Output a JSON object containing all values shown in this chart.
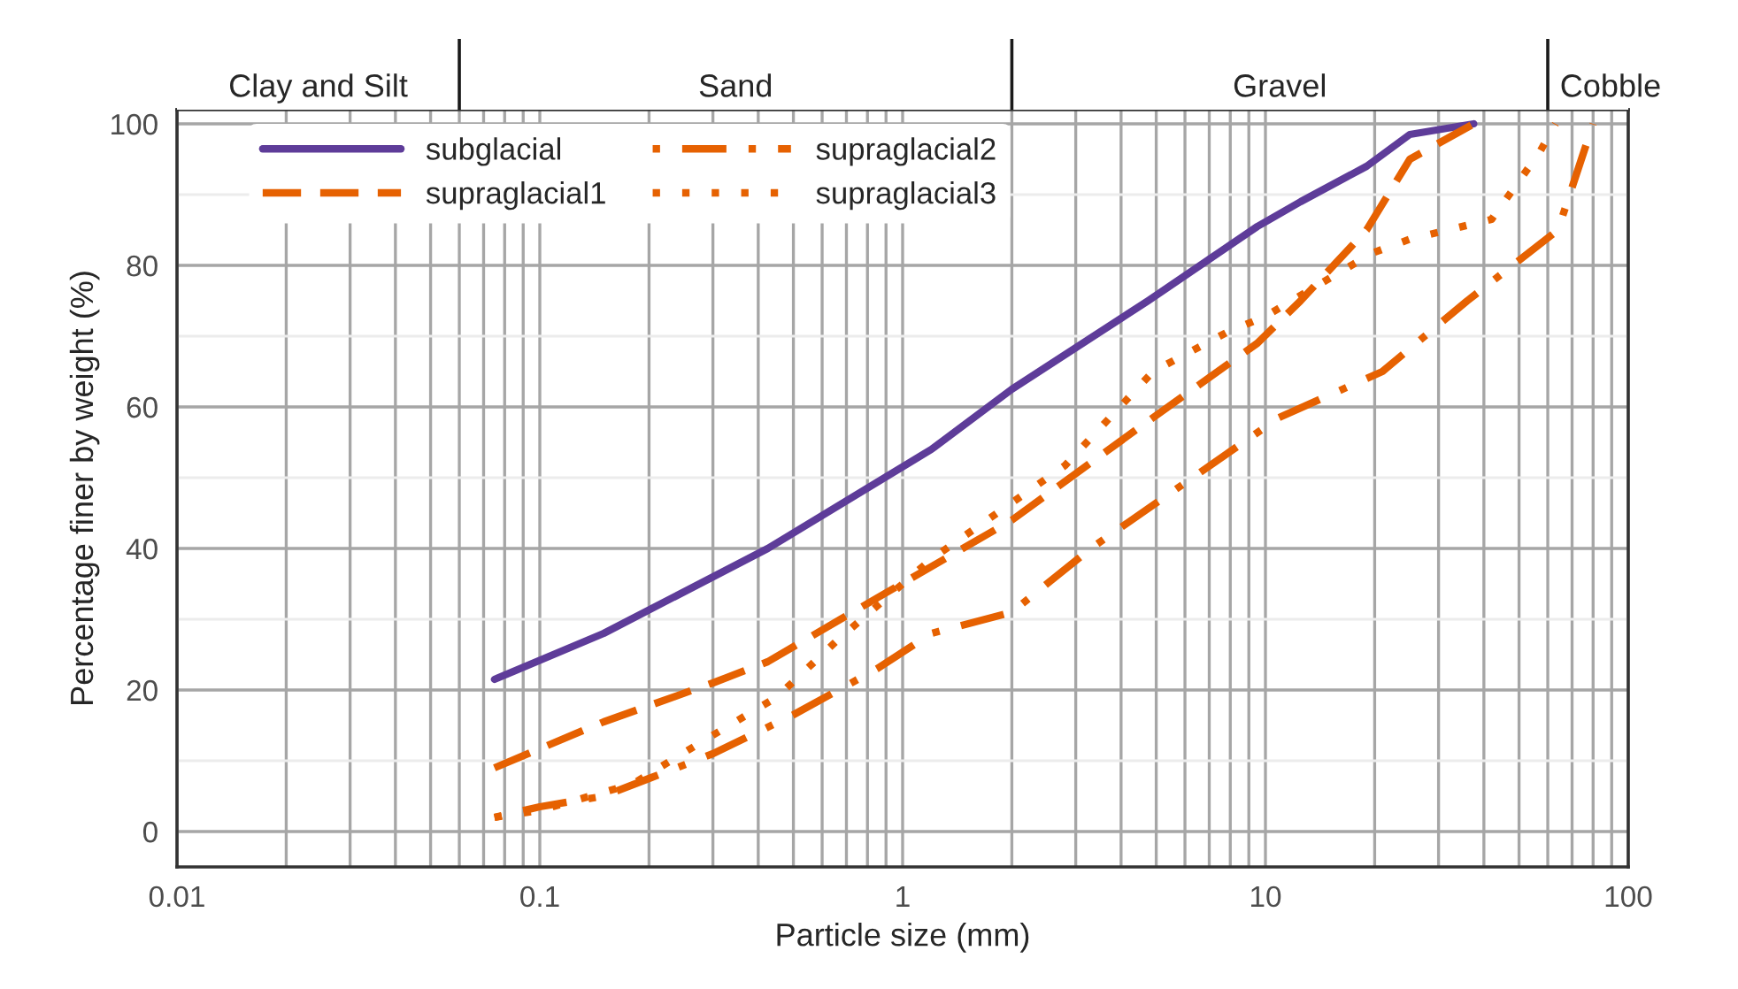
{
  "chart_data": {
    "type": "line",
    "xlabel": "Particle size (mm)",
    "ylabel": "Percentage finer by weight (%)",
    "log": "x",
    "xlim": [
      0.01,
      100
    ],
    "xticks": [
      0.01,
      0.1,
      1,
      10,
      100
    ],
    "ylim": [
      -5,
      102
    ],
    "yticks": [
      0,
      20,
      40,
      60,
      80,
      100
    ],
    "grid": true,
    "legend": "top left",
    "ref_lines": [
      {
        "axis": "x",
        "value": 0.06
      },
      {
        "axis": "x",
        "value": 2
      },
      {
        "axis": "x",
        "value": 60
      }
    ],
    "annotations": [
      "Clay and Silt",
      "Sand",
      "Gravel",
      "Cobble"
    ],
    "series": [
      {
        "name": "subglacial",
        "color": "#5e3c99",
        "line_style": "solid",
        "x": [
          0.075,
          0.15,
          0.425,
          1.2,
          2,
          4.75,
          9.5,
          12.5,
          19,
          25,
          37.5
        ],
        "values": [
          21.5,
          28,
          40,
          54,
          62.5,
          75,
          85.5,
          89,
          94,
          98.5,
          100
        ]
      },
      {
        "name": "supraglacial1",
        "color": "#e66101",
        "line_style": "dashed",
        "x": [
          0.075,
          0.15,
          0.3,
          0.425,
          0.85,
          2,
          4.75,
          9.5,
          12.5,
          19,
          25,
          37.5
        ],
        "values": [
          9,
          15.5,
          21,
          24,
          33,
          44,
          58,
          69,
          75,
          85,
          95,
          100
        ]
      },
      {
        "name": "supraglacial2",
        "color": "#e66101",
        "line_style": "dashdot",
        "x": [
          0.075,
          0.1,
          0.15,
          0.2,
          0.3,
          0.5,
          0.85,
          1.2,
          2,
          3.3,
          5.9,
          10.9,
          21,
          36,
          64,
          80
        ],
        "values": [
          2,
          3.5,
          5,
          7.5,
          11,
          16.5,
          23,
          28,
          31,
          40,
          49,
          58.5,
          65,
          75,
          85,
          100
        ]
      },
      {
        "name": "supraglacial3",
        "color": "#e66101",
        "line_style": "dotted",
        "x": [
          0.075,
          0.1,
          0.18,
          0.28,
          0.45,
          0.66,
          1.2,
          2.8,
          4.9,
          7.8,
          10,
          19.6,
          25,
          42,
          57,
          63
        ],
        "values": [
          2,
          3,
          6.7,
          12.7,
          19,
          27,
          38.5,
          51.7,
          65,
          70.5,
          72.8,
          81.7,
          83.7,
          86.5,
          96,
          100
        ]
      }
    ]
  }
}
